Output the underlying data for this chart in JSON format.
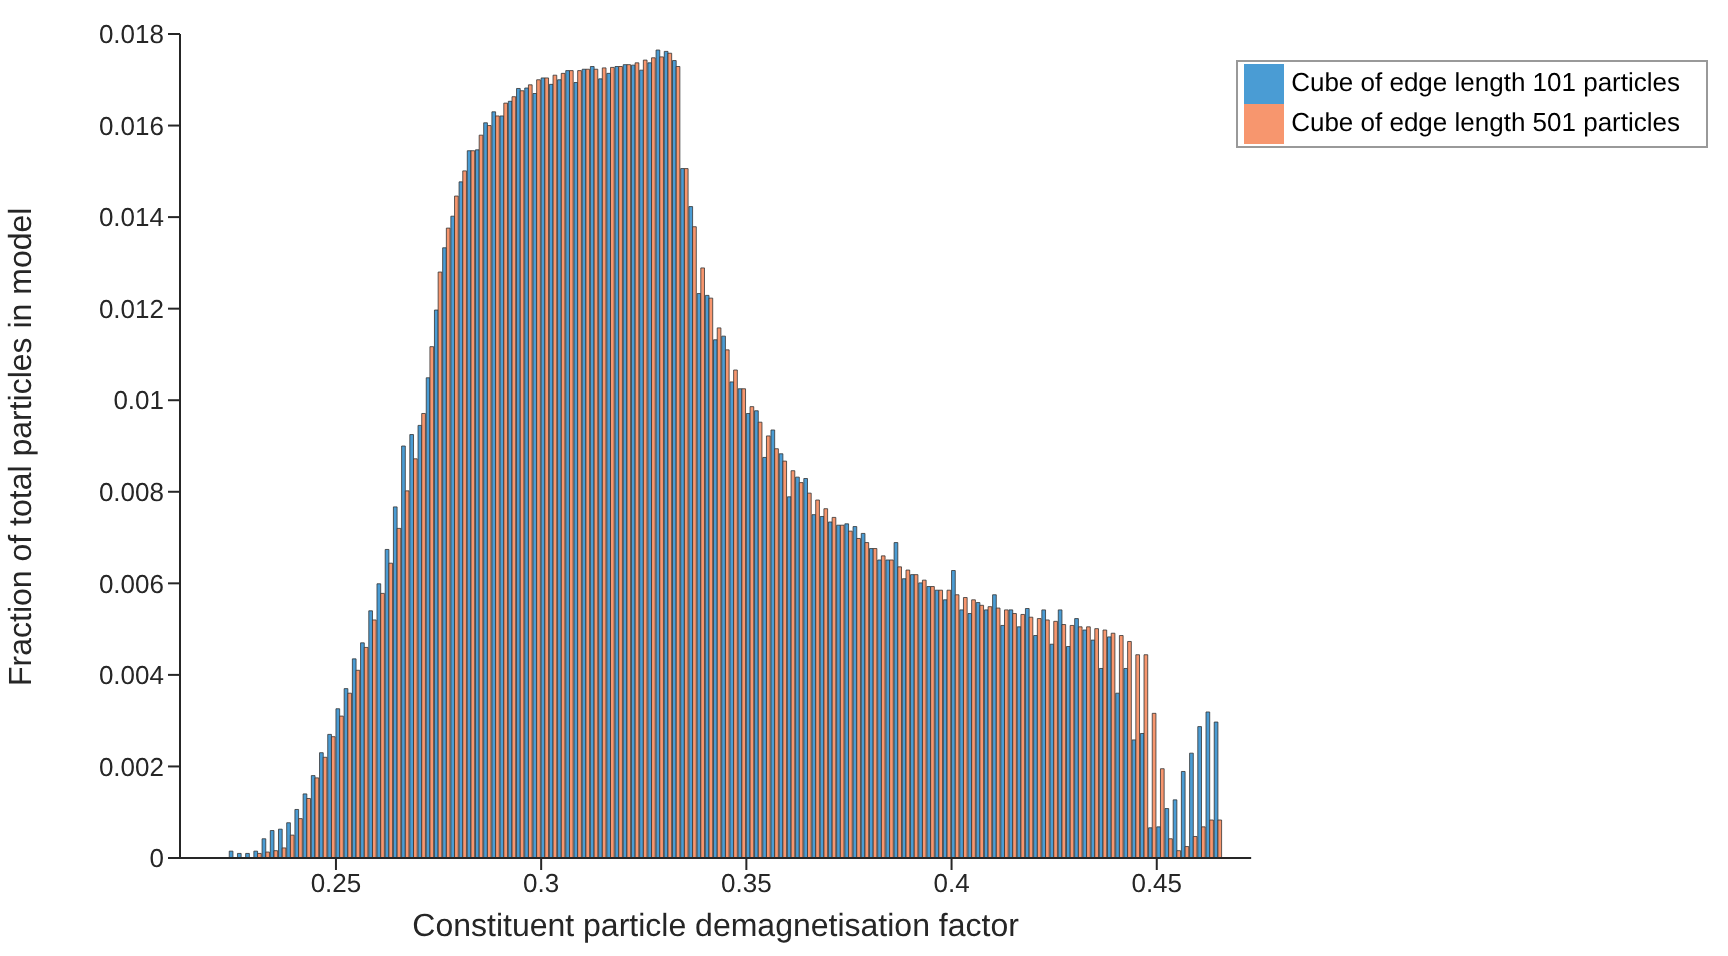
{
  "chart_data": {
    "type": "histogram",
    "xlabel": "Constituent particle demagnetisation factor",
    "ylabel": "Fraction of total particles in model",
    "bins": [
      0.224,
      0.226,
      0.228,
      0.23,
      0.232,
      0.234,
      0.236,
      0.238,
      0.24,
      0.242,
      0.244,
      0.246,
      0.248,
      0.25,
      0.252,
      0.254,
      0.256,
      0.258,
      0.26,
      0.262,
      0.264,
      0.266,
      0.268,
      0.27,
      0.272,
      0.274,
      0.276,
      0.278,
      0.28,
      0.282,
      0.284,
      0.286,
      0.288,
      0.29,
      0.292,
      0.294,
      0.296,
      0.298,
      0.3,
      0.302,
      0.304,
      0.306,
      0.308,
      0.31,
      0.312,
      0.314,
      0.316,
      0.318,
      0.32,
      0.322,
      0.324,
      0.326,
      0.328,
      0.33,
      0.332,
      0.334,
      0.336,
      0.338,
      0.34,
      0.342,
      0.344,
      0.346,
      0.348,
      0.35,
      0.352,
      0.354,
      0.356,
      0.358,
      0.36,
      0.362,
      0.364,
      0.366,
      0.368,
      0.37,
      0.372,
      0.374,
      0.376,
      0.378,
      0.38,
      0.382,
      0.384,
      0.386,
      0.388,
      0.39,
      0.392,
      0.394,
      0.396,
      0.398,
      0.4,
      0.402,
      0.404,
      0.406,
      0.408,
      0.41,
      0.412,
      0.414,
      0.416,
      0.418,
      0.42,
      0.422,
      0.424,
      0.426,
      0.428,
      0.43,
      0.432,
      0.434,
      0.436,
      0.438,
      0.44,
      0.442,
      0.444,
      0.446,
      0.448,
      0.45,
      0.452,
      0.454,
      0.456,
      0.458,
      0.46,
      0.462,
      0.464,
      0.466
    ],
    "series": [
      {
        "name": "Cube of edge length 101 particles",
        "color": "#4a9cd4",
        "values": [
          0.00015,
          0.0001,
          0.0001,
          0.00015,
          0.00042,
          0.0006,
          0.00063,
          0.00077,
          0.00106,
          0.0014,
          0.0018,
          0.0023,
          0.0027,
          0.00326,
          0.0037,
          0.00435,
          0.0047,
          0.0054,
          0.00599,
          0.00674,
          0.00767,
          0.009,
          0.00925,
          0.00945,
          0.01049,
          0.01197,
          0.01333,
          0.01402,
          0.01477,
          0.01545,
          0.01547,
          0.01606,
          0.0163,
          0.01621,
          0.01653,
          0.01681,
          0.01682,
          0.0167,
          0.01704,
          0.0169,
          0.017,
          0.0172,
          0.01694,
          0.01723,
          0.01729,
          0.01702,
          0.01714,
          0.01729,
          0.01733,
          0.01732,
          0.01721,
          0.01737,
          0.01765,
          0.01762,
          0.01742,
          0.01506,
          0.01423,
          0.01233,
          0.01229,
          0.01132,
          0.0114,
          0.0104,
          0.01025,
          0.00971,
          0.00977,
          0.00875,
          0.00935,
          0.00883,
          0.00789,
          0.00832,
          0.00829,
          0.0075,
          0.00746,
          0.00734,
          0.00727,
          0.0073,
          0.00724,
          0.00709,
          0.00676,
          0.00651,
          0.00651,
          0.00689,
          0.0061,
          0.00619,
          0.00601,
          0.00593,
          0.00585,
          0.00564,
          0.00628,
          0.00542,
          0.00534,
          0.00558,
          0.00542,
          0.00575,
          0.00508,
          0.00542,
          0.00505,
          0.00545,
          0.00486,
          0.00542,
          0.00467,
          0.00542,
          0.00462,
          0.00523,
          0.00498,
          0.00476,
          0.00414,
          0.00483,
          0.0036,
          0.00414,
          0.00258,
          0.00272,
          0.00066,
          0.00068,
          0.00108,
          0.00127,
          0.00189,
          0.00229,
          0.00287,
          0.00319,
          0.00297
        ]
      },
      {
        "name": "Cube of edge length 501 particles",
        "color": "#f7966e",
        "values": [
          0,
          0,
          0,
          0.0001,
          0.00013,
          0.00016,
          0.00022,
          0.0005,
          0.00086,
          0.0013,
          0.00175,
          0.0022,
          0.00265,
          0.0031,
          0.0036,
          0.0041,
          0.0046,
          0.0052,
          0.00578,
          0.00644,
          0.0072,
          0.00802,
          0.00872,
          0.00971,
          0.01117,
          0.0128,
          0.01376,
          0.01446,
          0.01501,
          0.01545,
          0.01579,
          0.016,
          0.01621,
          0.01649,
          0.01663,
          0.01676,
          0.01689,
          0.017,
          0.01704,
          0.0171,
          0.01714,
          0.0172,
          0.0172,
          0.01723,
          0.01723,
          0.01726,
          0.01727,
          0.01729,
          0.01733,
          0.01737,
          0.01743,
          0.01748,
          0.0175,
          0.01758,
          0.01729,
          0.01506,
          0.01379,
          0.01289,
          0.01223,
          0.01158,
          0.0111,
          0.01066,
          0.01025,
          0.00986,
          0.00952,
          0.00922,
          0.00894,
          0.00867,
          0.00846,
          0.0082,
          0.00797,
          0.00782,
          0.00763,
          0.00744,
          0.00727,
          0.00714,
          0.00698,
          0.00689,
          0.00676,
          0.0066,
          0.00651,
          0.00636,
          0.00629,
          0.00619,
          0.00607,
          0.00593,
          0.00585,
          0.00585,
          0.00575,
          0.00569,
          0.00564,
          0.00552,
          0.00549,
          0.00546,
          0.00542,
          0.00534,
          0.00532,
          0.00526,
          0.00523,
          0.0052,
          0.00517,
          0.0051,
          0.00508,
          0.00505,
          0.00505,
          0.00501,
          0.00498,
          0.00491,
          0.00486,
          0.00473,
          0.00444,
          0.00444,
          0.00316,
          0.00195,
          0.00042,
          0.00016,
          0.00025,
          0.00047,
          0.00068,
          0.00083,
          0.00083
        ]
      }
    ],
    "xlim": [
      0.212,
      0.473
    ],
    "xticks": [
      0.25,
      0.3,
      0.35,
      0.4,
      0.45
    ],
    "ylim": [
      0,
      0.018
    ],
    "yticks": [
      0,
      0.002,
      0.004,
      0.006,
      0.008,
      0.01,
      0.012,
      0.014,
      0.016,
      0.018
    ],
    "grid": false,
    "legend": "top right"
  }
}
